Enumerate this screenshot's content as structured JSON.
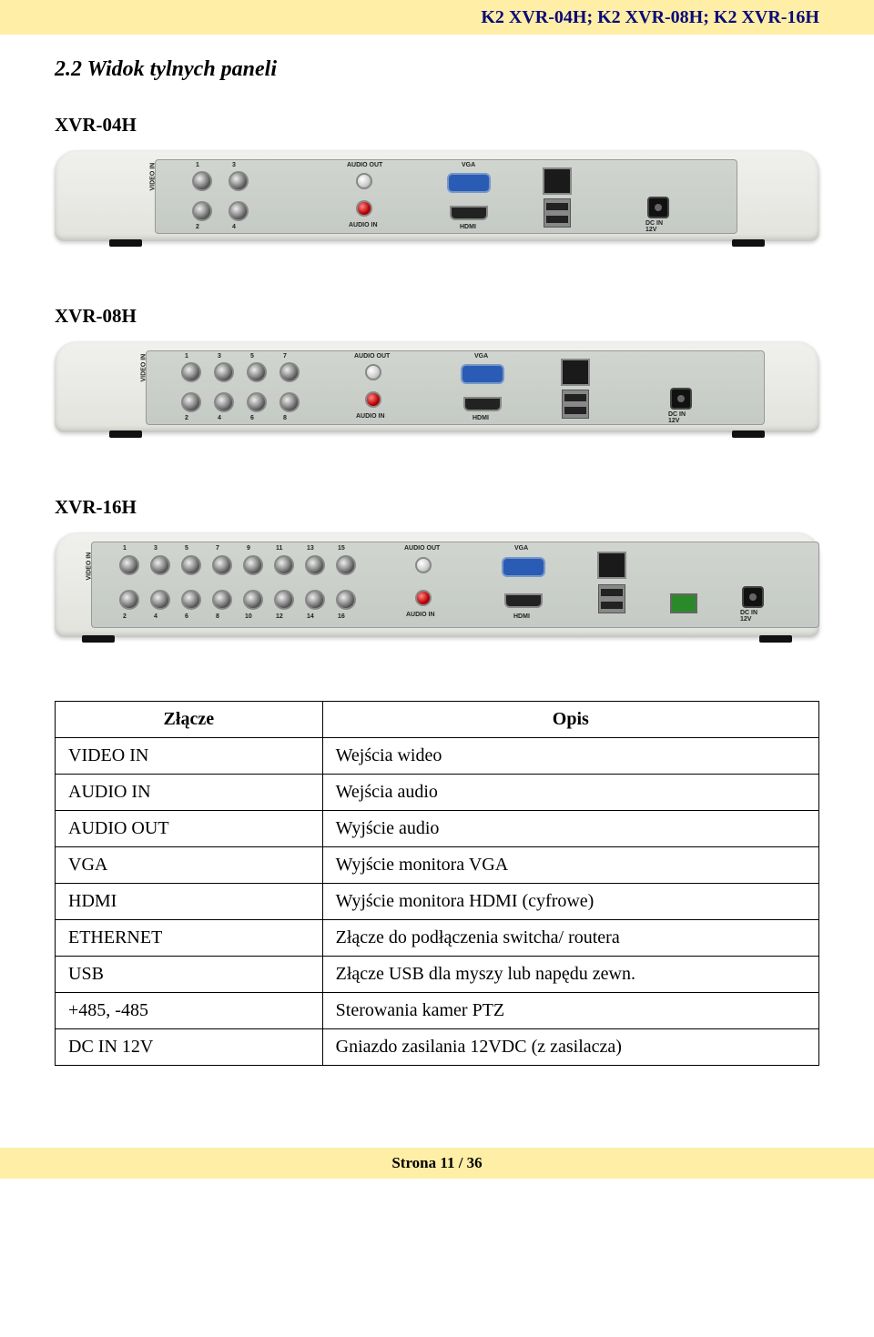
{
  "header_models": "K2  XVR-04H;    K2 XVR-08H;    K2 XVR-16H",
  "section_title": "2.2 Widok tylnych paneli",
  "model_04h": "XVR-04H",
  "model_08h": "XVR-08H",
  "model_16h": "XVR-16H",
  "table": {
    "header_connector": "Złącze",
    "header_desc": "Opis",
    "rows": [
      {
        "connector": "VIDEO IN",
        "desc": "Wejścia wideo"
      },
      {
        "connector": "AUDIO IN",
        "desc": "Wejścia audio"
      },
      {
        "connector": "AUDIO OUT",
        "desc": "Wyjście audio"
      },
      {
        "connector": "VGA",
        "desc": "Wyjście monitora VGA"
      },
      {
        "connector": "HDMI",
        "desc": "Wyjście monitora HDMI (cyfrowe)"
      },
      {
        "connector": "ETHERNET",
        "desc": "Złącze do podłączenia switcha/ routera"
      },
      {
        "connector": "USB",
        "desc": "Złącze USB dla myszy lub napędu zewn."
      },
      {
        "connector": "+485, -485",
        "desc": "Sterowania kamer PTZ"
      },
      {
        "connector": "DC IN 12V",
        "desc": "Gniazdo zasilania 12VDC (z zasilacza)"
      }
    ]
  },
  "footer": "Strona 11 / 36",
  "panel_labels": {
    "video_in": "VIDEO IN",
    "audio_out": "AUDIO OUT",
    "audio_in": "AUDIO IN",
    "vga": "VGA",
    "hdmi": "HDMI",
    "dc_in": "DC IN\n12V"
  }
}
